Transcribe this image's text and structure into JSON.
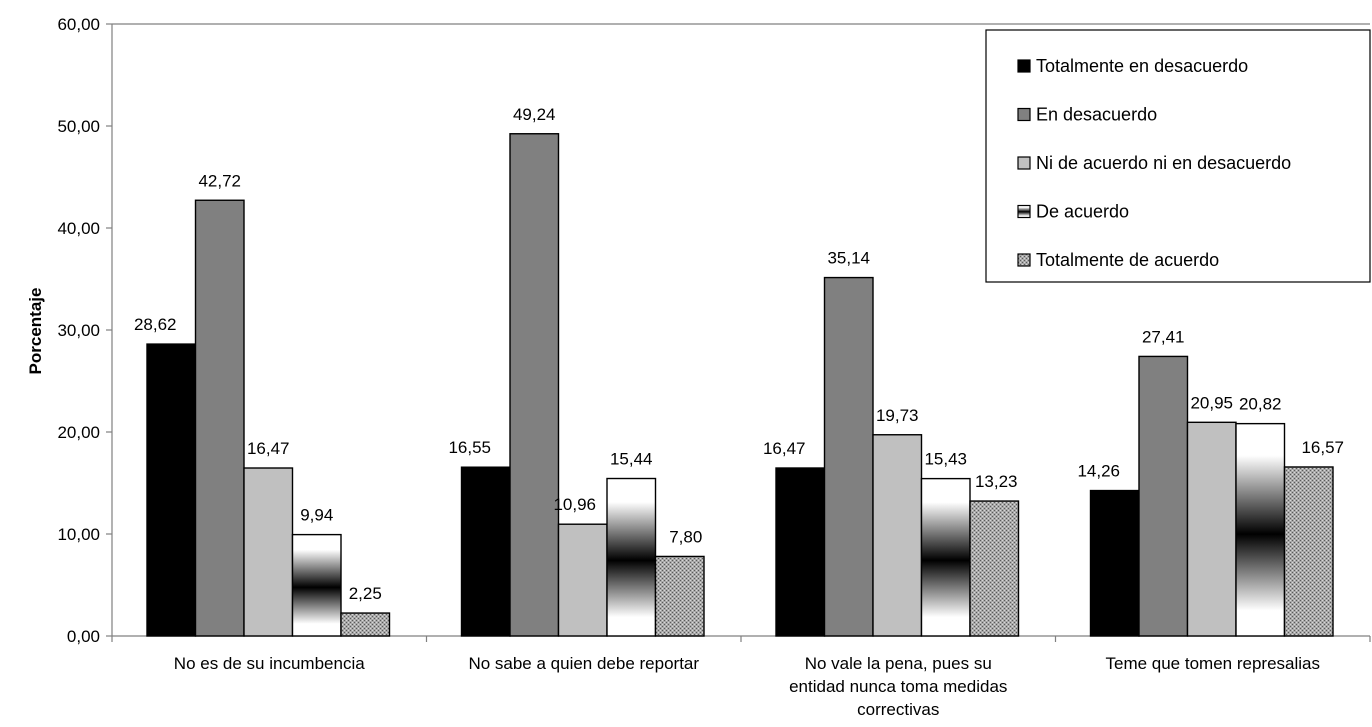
{
  "chart_data": {
    "type": "bar",
    "title": "",
    "xlabel": "",
    "ylabel": "Porcentaje",
    "ylim": [
      0,
      60
    ],
    "yticks": [
      "0,00",
      "10,00",
      "20,00",
      "30,00",
      "40,00",
      "50,00",
      "60,00"
    ],
    "categories": [
      [
        "No es de su incumbencia"
      ],
      [
        "No sabe a quien debe reportar"
      ],
      [
        "No vale la pena, pues su",
        "entidad nunca toma medidas",
        "correctivas"
      ],
      [
        "Teme que tomen represalias"
      ]
    ],
    "series": [
      {
        "name": "Totalmente en desacuerdo",
        "values": [
          28.62,
          16.55,
          16.47,
          14.26
        ],
        "labels": [
          "28,62",
          "16,55",
          "16,47",
          "14,26"
        ]
      },
      {
        "name": "En desacuerdo",
        "values": [
          42.72,
          49.24,
          35.14,
          27.41
        ],
        "labels": [
          "42,72",
          "49,24",
          "35,14",
          "27,41"
        ]
      },
      {
        "name": "Ni de acuerdo ni en desacuerdo",
        "values": [
          16.47,
          10.96,
          19.73,
          20.95
        ],
        "labels": [
          "16,47",
          "10,96",
          "19,73",
          "20,95"
        ]
      },
      {
        "name": "De acuerdo",
        "values": [
          9.94,
          15.44,
          15.43,
          20.82
        ],
        "labels": [
          "9,94",
          "15,44",
          "15,43",
          "20,82"
        ]
      },
      {
        "name": "Totalmente de acuerdo",
        "values": [
          2.25,
          7.8,
          13.23,
          16.57
        ],
        "labels": [
          "2,25",
          "7,80",
          "13,23",
          "16,57"
        ]
      }
    ],
    "grid": false,
    "legend_position": "top-right",
    "series_fills": [
      "#000000",
      "#808080",
      "#c0c0c0",
      "gradient-white-black-white",
      "crosshatch-gray"
    ]
  }
}
